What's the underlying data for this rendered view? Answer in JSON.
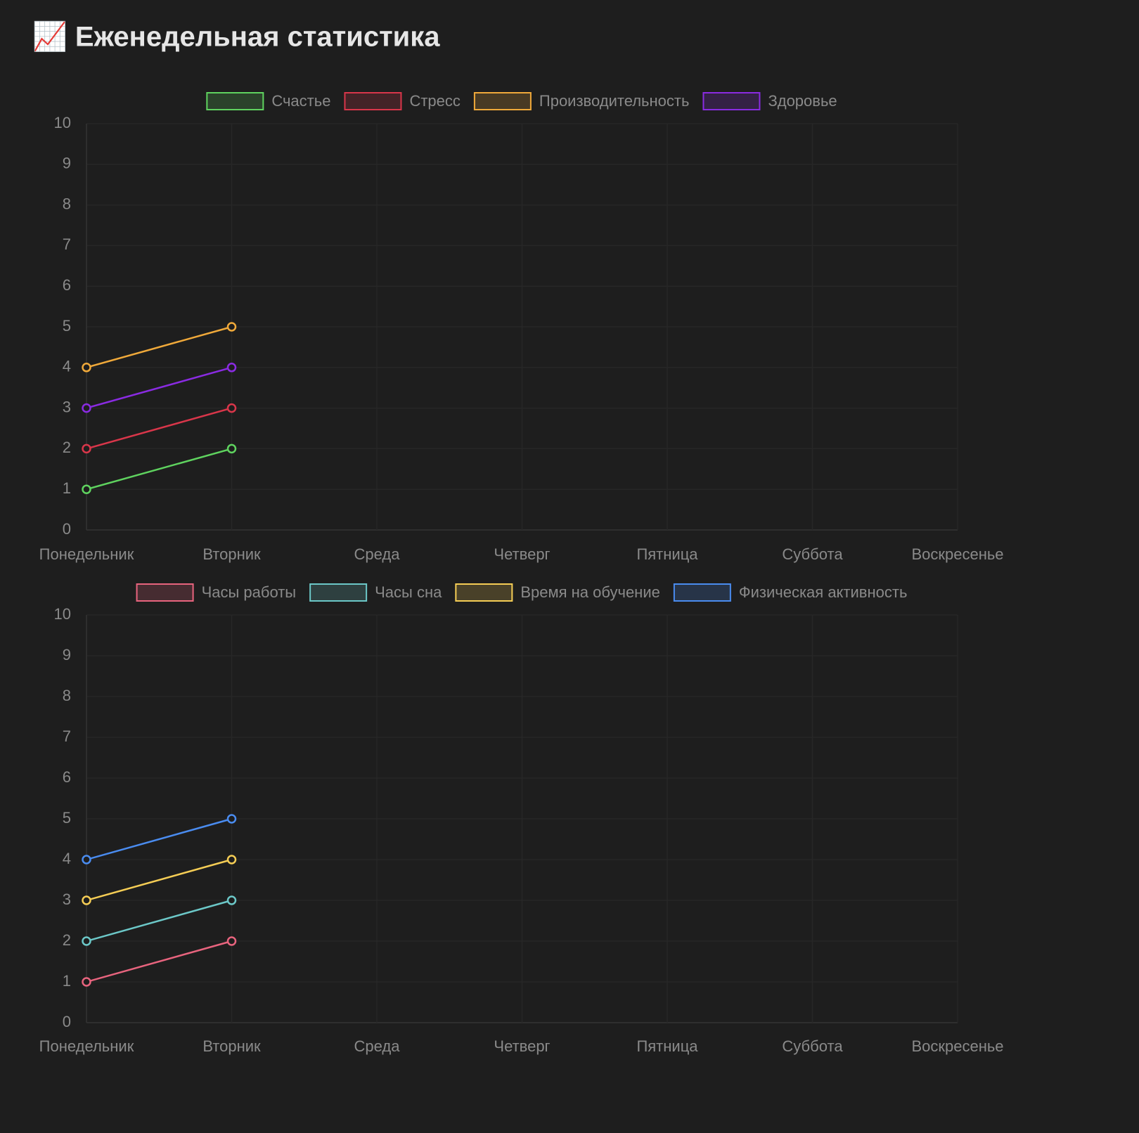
{
  "title": "📈 Еженедельная статистика",
  "chart_data": [
    {
      "type": "line",
      "categories": [
        "Понедельник",
        "Вторник",
        "Среда",
        "Четверг",
        "Пятница",
        "Суббота",
        "Воскресенье"
      ],
      "series": [
        {
          "name": "Счастье",
          "color": "#5fd35f",
          "values": [
            1,
            2,
            null,
            null,
            null,
            null,
            null
          ]
        },
        {
          "name": "Стресс",
          "color": "#d9364a",
          "values": [
            2,
            3,
            null,
            null,
            null,
            null,
            null
          ]
        },
        {
          "name": "Производительность",
          "color": "#f0a93a",
          "values": [
            4,
            5,
            null,
            null,
            null,
            null,
            null
          ]
        },
        {
          "name": "Здоровье",
          "color": "#8a2be2",
          "values": [
            3,
            4,
            null,
            null,
            null,
            null,
            null
          ]
        }
      ],
      "ylim": [
        0,
        10
      ],
      "yticks": [
        0,
        1,
        2,
        3,
        4,
        5,
        6,
        7,
        8,
        9,
        10
      ],
      "grid": true,
      "legend": "top"
    },
    {
      "type": "line",
      "categories": [
        "Понедельник",
        "Вторник",
        "Среда",
        "Четверг",
        "Пятница",
        "Суббота",
        "Воскресенье"
      ],
      "series": [
        {
          "name": "Часы работы",
          "color": "#e8647e",
          "values": [
            1,
            2,
            null,
            null,
            null,
            null,
            null
          ]
        },
        {
          "name": "Часы сна",
          "color": "#6cc8c8",
          "values": [
            2,
            3,
            null,
            null,
            null,
            null,
            null
          ]
        },
        {
          "name": "Время на обучение",
          "color": "#f5cd55",
          "values": [
            3,
            4,
            null,
            null,
            null,
            null,
            null
          ]
        },
        {
          "name": "Физическая активность",
          "color": "#4a8cf0",
          "values": [
            4,
            5,
            null,
            null,
            null,
            null,
            null
          ]
        }
      ],
      "ylim": [
        0,
        10
      ],
      "yticks": [
        0,
        1,
        2,
        3,
        4,
        5,
        6,
        7,
        8,
        9,
        10
      ],
      "grid": true,
      "legend": "top"
    }
  ]
}
